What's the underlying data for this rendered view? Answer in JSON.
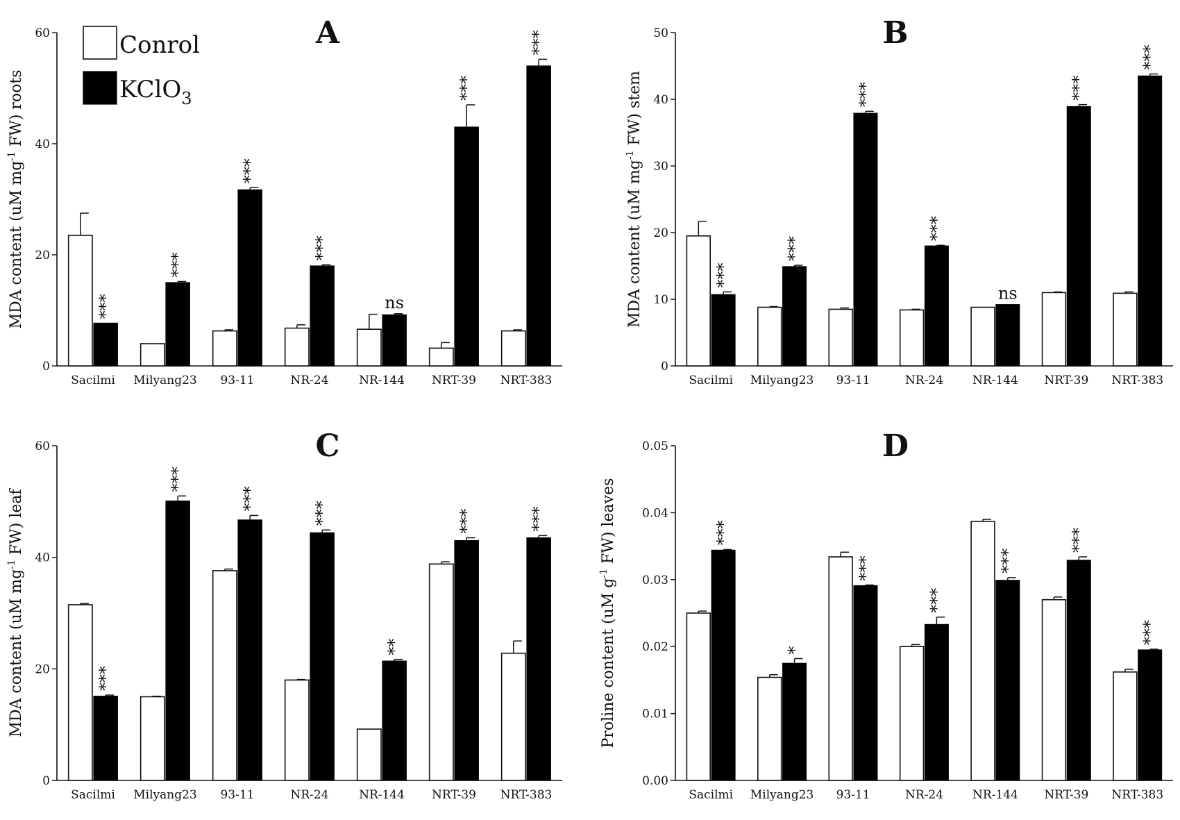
{
  "colors": {
    "control": "#ffffff",
    "kclo3": "#000000",
    "ink": "#111111"
  },
  "legend": {
    "control_label": "Conrol",
    "kclo3_label": "KClO",
    "kclo3_subscript": "3"
  },
  "chart_data": [
    {
      "id": "A",
      "type": "bar",
      "title": "A",
      "categories": [
        "Sacilmi",
        "Milyang23",
        "93-11",
        "NR-24",
        "NR-144",
        "NRT-39",
        "NRT-383"
      ],
      "ylabel_parts": [
        "MDA content (uM mg",
        "-1",
        " FW) roots"
      ],
      "ylim": [
        0,
        60
      ],
      "yticks": [
        0,
        20,
        40,
        60
      ],
      "ytick_labels": [
        "0",
        "20",
        "40",
        "60"
      ],
      "series": [
        {
          "name": "Conrol",
          "values": [
            23.5,
            4.0,
            6.3,
            6.8,
            6.6,
            3.2,
            6.3
          ],
          "errors": [
            4.0,
            0,
            0.2,
            0.6,
            2.7,
            1.0,
            0.2
          ]
        },
        {
          "name": "KClO3",
          "values": [
            7.7,
            15.0,
            31.7,
            18.0,
            9.2,
            43.0,
            54.0
          ],
          "errors": [
            0,
            0.2,
            0.4,
            0.2,
            0.2,
            4.0,
            1.2
          ]
        }
      ],
      "annotations": [
        "***",
        "***",
        "***",
        "***",
        "ns",
        "***",
        "***"
      ]
    },
    {
      "id": "B",
      "type": "bar",
      "title": "B",
      "categories": [
        "Sacilmi",
        "Milyang23",
        "93-11",
        "NR-24",
        "NR-144",
        "NRT-39",
        "NRT-383"
      ],
      "ylabel_parts": [
        "MDA content (uM mg",
        "-1",
        " FW) stem"
      ],
      "ylim": [
        0,
        50
      ],
      "yticks": [
        0,
        10,
        20,
        30,
        40,
        50
      ],
      "ytick_labels": [
        "0",
        "10",
        "20",
        "30",
        "40",
        "50"
      ],
      "series": [
        {
          "name": "Conrol",
          "values": [
            19.5,
            8.8,
            8.5,
            8.4,
            8.8,
            11.0,
            10.9
          ],
          "errors": [
            2.2,
            0.1,
            0.2,
            0.1,
            0,
            0.1,
            0.2
          ]
        },
        {
          "name": "KClO3",
          "values": [
            10.7,
            14.9,
            37.9,
            18.0,
            9.2,
            38.9,
            43.5
          ],
          "errors": [
            0.4,
            0.2,
            0.3,
            0.1,
            0,
            0.3,
            0.3
          ]
        }
      ],
      "annotations": [
        "***",
        "***",
        "***",
        "***",
        "ns",
        "***",
        "***"
      ]
    },
    {
      "id": "C",
      "type": "bar",
      "title": "C",
      "categories": [
        "Sacilmi",
        "Milyang23",
        "93-11",
        "NR-24",
        "NR-144",
        "NRT-39",
        "NRT-383"
      ],
      "ylabel_parts": [
        "MDA content (uM mg",
        "-1",
        " FW) leaf"
      ],
      "ylim": [
        0,
        60
      ],
      "yticks": [
        0,
        20,
        40,
        60
      ],
      "ytick_labels": [
        "0",
        "20",
        "40",
        "60"
      ],
      "series": [
        {
          "name": "Conrol",
          "values": [
            31.5,
            15.0,
            37.6,
            18.0,
            9.2,
            38.8,
            22.8
          ],
          "errors": [
            0.2,
            0.1,
            0.3,
            0.1,
            0,
            0.4,
            2.2
          ]
        },
        {
          "name": "KClO3",
          "values": [
            15.1,
            50.1,
            46.7,
            44.4,
            21.4,
            43.0,
            43.5
          ],
          "errors": [
            0.2,
            0.9,
            0.8,
            0.5,
            0.3,
            0.5,
            0.4
          ]
        }
      ],
      "annotations": [
        "***",
        "***",
        "***",
        "***",
        "**",
        "***",
        "***"
      ]
    },
    {
      "id": "D",
      "type": "bar",
      "title": "D",
      "categories": [
        "Sacilmi",
        "Milyang23",
        "93-11",
        "NR-24",
        "NR-144",
        "NRT-39",
        "NRT-383"
      ],
      "ylabel_parts": [
        "Proline content (uM g",
        "-1",
        " FW) leaves"
      ],
      "ylim": [
        0,
        0.05
      ],
      "yticks": [
        0,
        0.01,
        0.02,
        0.03,
        0.04,
        0.05
      ],
      "ytick_labels": [
        "0.00",
        "0.01",
        "0.02",
        "0.03",
        "0.04",
        "0.05"
      ],
      "series": [
        {
          "name": "Conrol",
          "values": [
            0.025,
            0.0154,
            0.0334,
            0.02,
            0.0387,
            0.027,
            0.0162
          ],
          "errors": [
            0.0003,
            0.0004,
            0.0007,
            0.0003,
            0.0003,
            0.0004,
            0.0004
          ]
        },
        {
          "name": "KClO3",
          "values": [
            0.0344,
            0.0175,
            0.0291,
            0.0233,
            0.0299,
            0.0329,
            0.0195
          ],
          "errors": [
            0.0001,
            0.0007,
            0.0001,
            0.0011,
            0.0004,
            0.0005,
            0.0001
          ]
        }
      ],
      "annotations": [
        "***",
        "*",
        "***",
        "***",
        "***",
        "***",
        "***"
      ]
    }
  ]
}
